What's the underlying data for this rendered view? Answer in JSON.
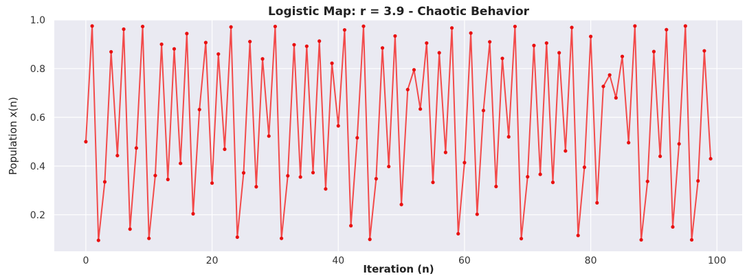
{
  "chart_data": {
    "type": "line",
    "title": "Logistic Map: r = 3.9 - Chaotic Behavior",
    "xlabel": "Iteration (n)",
    "ylabel": "Population x(n)",
    "xlim": [
      -5,
      104
    ],
    "ylim": [
      0.05,
      1.0
    ],
    "xticks": [
      0,
      20,
      40,
      60,
      80,
      100
    ],
    "yticks": [
      0.2,
      0.4,
      0.6,
      0.8,
      1.0
    ],
    "xtick_labels": [
      "0",
      "20",
      "40",
      "60",
      "80",
      "100"
    ],
    "ytick_labels": [
      "0.2",
      "0.4",
      "0.6",
      "0.8",
      "1.0"
    ],
    "grid": true,
    "background": "#eaeaf2",
    "series": [
      {
        "color": "#f24a4a",
        "marker_color": "#e81010",
        "x": [
          0,
          1,
          2,
          3,
          4,
          5,
          6,
          7,
          8,
          9,
          10,
          11,
          12,
          13,
          14,
          15,
          16,
          17,
          18,
          19,
          20,
          21,
          22,
          23,
          24,
          25,
          26,
          27,
          28,
          29,
          30,
          31,
          32,
          33,
          34,
          35,
          36,
          37,
          38,
          39,
          40,
          41,
          42,
          43,
          44,
          45,
          46,
          47,
          48,
          49,
          50,
          51,
          52,
          53,
          54,
          55,
          56,
          57,
          58,
          59,
          60,
          61,
          62,
          63,
          64,
          65,
          66,
          67,
          68,
          69,
          70,
          71,
          72,
          73,
          74,
          75,
          76,
          77,
          78,
          79,
          80,
          81,
          82,
          83,
          84,
          85,
          86,
          87,
          88,
          89,
          90,
          91,
          92,
          93,
          94,
          95,
          96,
          97,
          98,
          99
        ],
        "y": [
          0.5,
          0.975,
          0.095,
          0.335,
          0.869,
          0.443,
          0.962,
          0.141,
          0.474,
          0.973,
          0.103,
          0.361,
          0.9,
          0.345,
          0.881,
          0.411,
          0.944,
          0.204,
          0.632,
          0.907,
          0.33,
          0.86,
          0.469,
          0.971,
          0.108,
          0.372,
          0.911,
          0.315,
          0.84,
          0.523,
          0.973,
          0.103,
          0.36,
          0.898,
          0.355,
          0.892,
          0.373,
          0.913,
          0.306,
          0.822,
          0.565,
          0.959,
          0.155,
          0.516,
          0.974,
          0.099,
          0.348,
          0.885,
          0.398,
          0.934,
          0.242,
          0.714,
          0.795,
          0.634,
          0.905,
          0.333,
          0.865,
          0.456,
          0.967,
          0.122,
          0.414,
          0.946,
          0.202,
          0.628,
          0.91,
          0.316,
          0.842,
          0.52,
          0.973,
          0.102,
          0.356,
          0.895,
          0.366,
          0.905,
          0.333,
          0.865,
          0.462,
          0.969,
          0.115,
          0.395,
          0.932,
          0.249,
          0.727,
          0.774,
          0.68,
          0.85,
          0.496,
          0.975,
          0.097,
          0.337,
          0.87,
          0.44,
          0.96,
          0.15,
          0.491,
          0.975,
          0.097,
          0.339,
          0.873,
          0.43
        ]
      }
    ]
  }
}
